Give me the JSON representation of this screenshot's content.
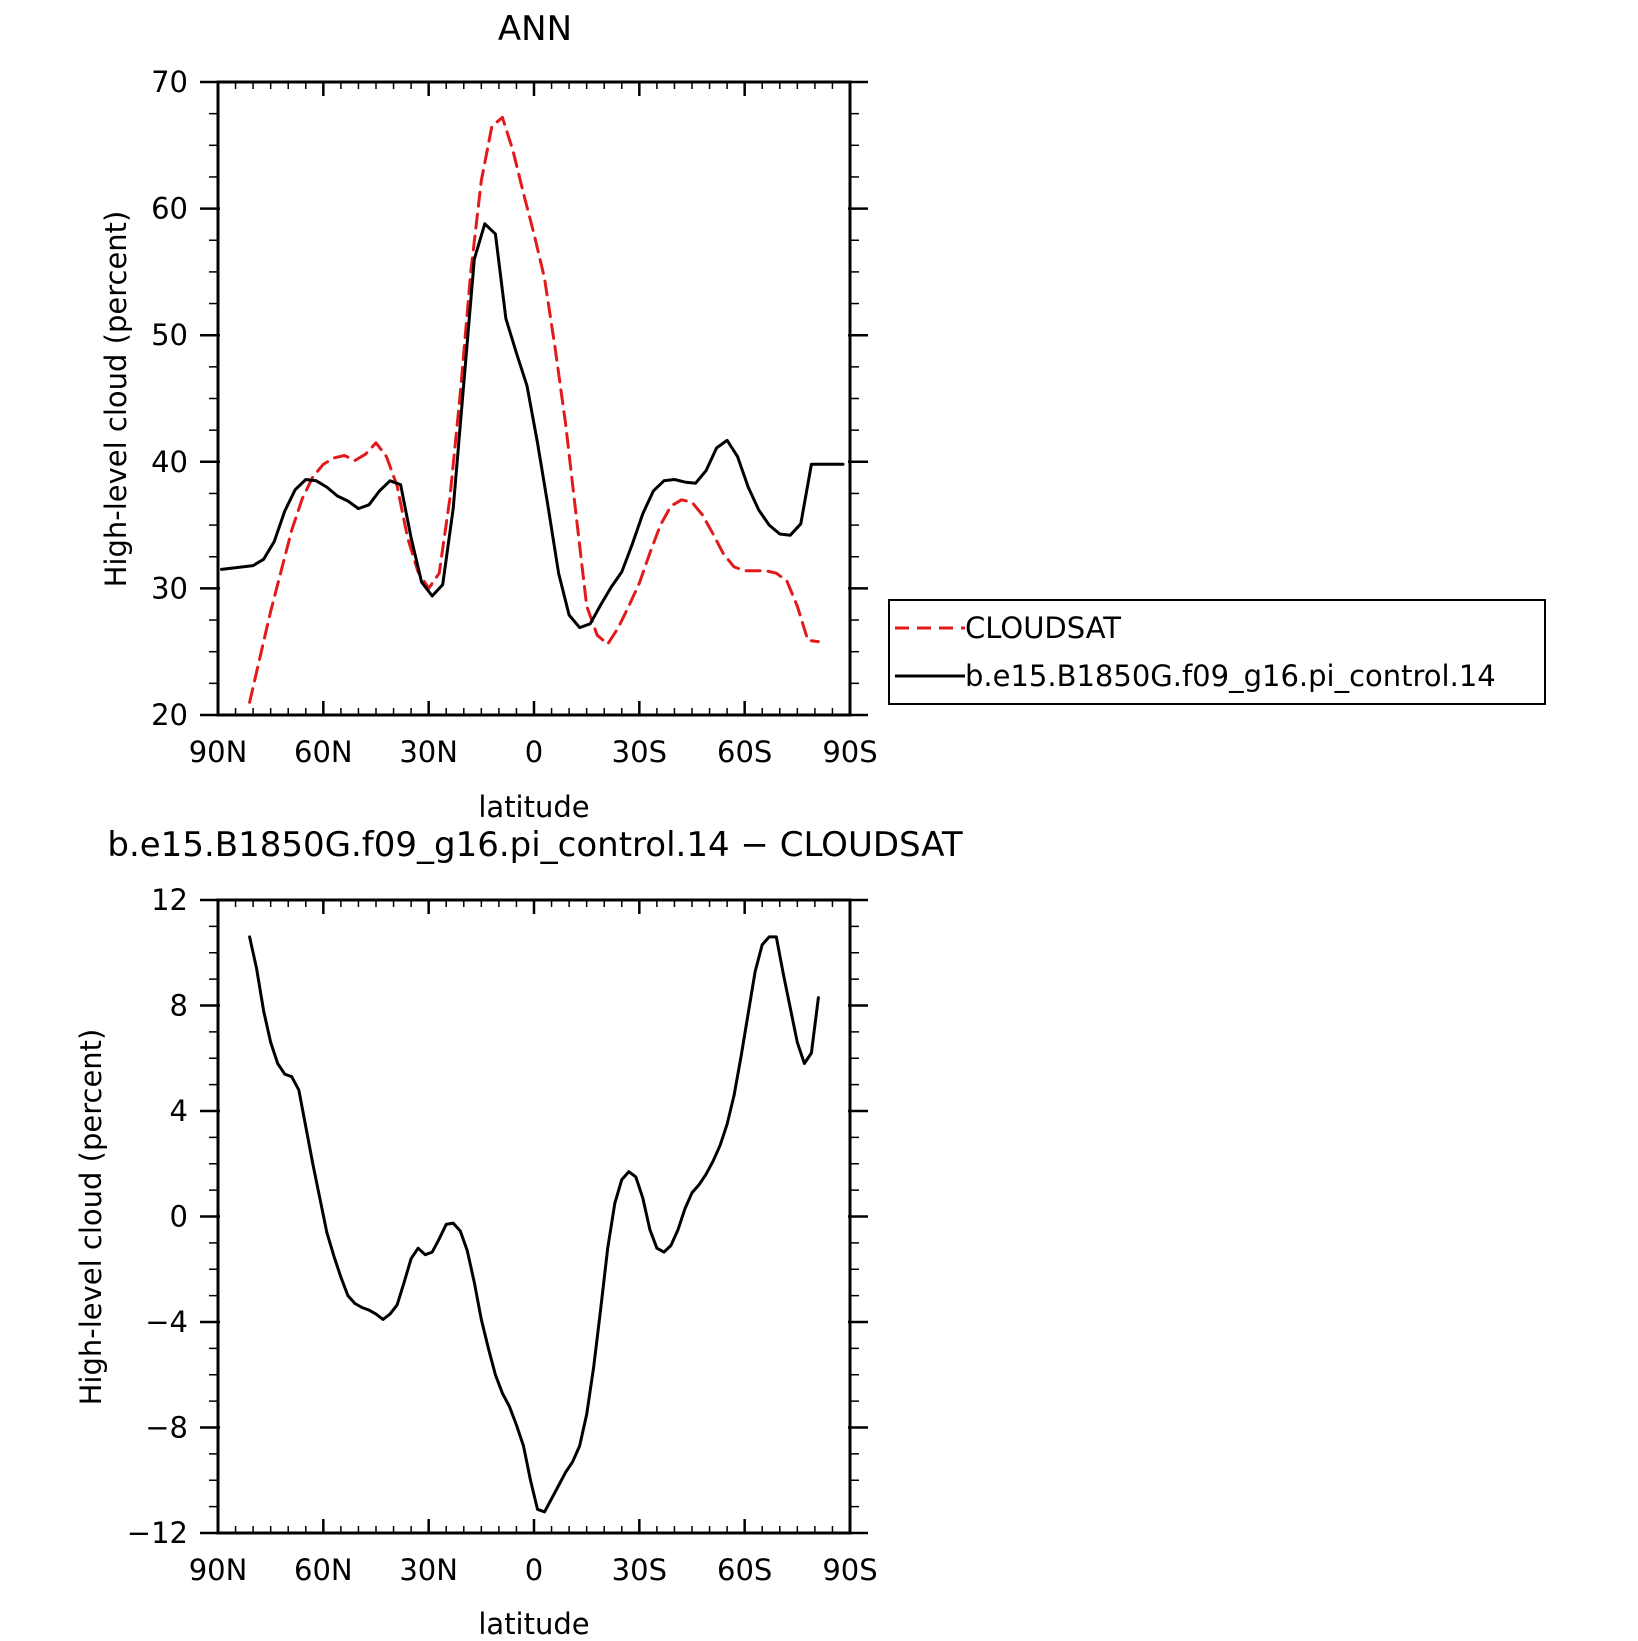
{
  "chart_data": [
    {
      "type": "line",
      "title": "ANN",
      "xlabel": "latitude",
      "ylabel": "High-level cloud (percent)",
      "xlim": [
        90,
        -90
      ],
      "ylim": [
        20,
        70
      ],
      "xticks": [
        {
          "value": 90,
          "label": "90N"
        },
        {
          "value": 60,
          "label": "60N"
        },
        {
          "value": 30,
          "label": "30N"
        },
        {
          "value": 0,
          "label": "0"
        },
        {
          "value": -30,
          "label": "30S"
        },
        {
          "value": -60,
          "label": "60S"
        },
        {
          "value": -90,
          "label": "90S"
        }
      ],
      "yticks": [
        {
          "value": 20,
          "label": "20"
        },
        {
          "value": 30,
          "label": "30"
        },
        {
          "value": 40,
          "label": "40"
        },
        {
          "value": 50,
          "label": "50"
        },
        {
          "value": 60,
          "label": "60"
        },
        {
          "value": 70,
          "label": "70"
        }
      ],
      "legend_position": "right",
      "series": [
        {
          "name": "CLOUDSAT",
          "color": "#e31a1c",
          "dash": "dashed",
          "x": [
            81,
            78,
            75,
            72,
            69,
            66,
            63,
            60,
            57,
            54,
            51,
            48,
            45,
            42,
            39,
            36,
            33,
            30,
            27,
            24,
            21,
            18,
            15,
            12,
            9,
            6,
            3,
            0,
            -3,
            -6,
            -9,
            -12,
            -15,
            -18,
            -21,
            -24,
            -27,
            -30,
            -33,
            -36,
            -39,
            -42,
            -45,
            -48,
            -51,
            -54,
            -57,
            -60,
            -63,
            -66,
            -69,
            -72,
            -75,
            -78,
            -81
          ],
          "y": [
            21.0,
            24.6,
            28.2,
            31.4,
            34.6,
            37.1,
            38.8,
            39.8,
            40.3,
            40.5,
            40.1,
            40.6,
            41.5,
            40.4,
            38.1,
            34.0,
            31.3,
            30.0,
            31.2,
            37.0,
            45.4,
            55.0,
            62.2,
            66.5,
            67.2,
            64.6,
            61.2,
            58.0,
            54.5,
            49.0,
            43.0,
            35.8,
            28.6,
            26.3,
            25.6,
            26.9,
            28.6,
            30.4,
            32.8,
            35.0,
            36.5,
            37.0,
            36.8,
            35.8,
            34.3,
            32.7,
            31.7,
            31.4,
            31.4,
            31.4,
            31.2,
            30.6,
            28.6,
            25.9,
            25.8
          ]
        },
        {
          "name": "b.e15.B1850G.f09_g16.pi_control.14",
          "color": "#000000",
          "dash": "solid",
          "x": [
            89,
            86,
            83,
            80,
            77,
            74,
            71,
            68,
            65,
            62,
            59,
            56,
            53,
            50,
            47,
            44,
            41,
            38,
            35,
            32,
            29,
            26,
            23,
            20,
            17,
            14,
            11,
            8,
            5,
            2,
            -1,
            -4,
            -7,
            -10,
            -13,
            -16,
            -19,
            -22,
            -25,
            -28,
            -31,
            -34,
            -37,
            -40,
            -43,
            -46,
            -49,
            -52,
            -55,
            -58,
            -61,
            -64,
            -67,
            -70,
            -73,
            -76,
            -79,
            -82,
            -85,
            -88
          ],
          "y": [
            31.5,
            31.6,
            31.7,
            31.8,
            32.3,
            33.7,
            36.1,
            37.8,
            38.6,
            38.5,
            38.0,
            37.3,
            36.9,
            36.3,
            36.6,
            37.7,
            38.5,
            38.2,
            34.0,
            30.5,
            29.4,
            30.3,
            36.3,
            46.2,
            56.0,
            58.8,
            58.0,
            51.3,
            48.6,
            46.0,
            41.5,
            36.5,
            31.2,
            27.9,
            26.9,
            27.2,
            28.7,
            30.1,
            31.3,
            33.5,
            35.9,
            37.7,
            38.5,
            38.6,
            38.4,
            38.3,
            39.3,
            41.1,
            41.7,
            40.4,
            38.0,
            36.2,
            35.0,
            34.3,
            34.2,
            35.1,
            39.8,
            39.8,
            39.8,
            39.8
          ]
        }
      ]
    },
    {
      "type": "line",
      "title": "b.e15.B1850G.f09_g16.pi_control.14 − CLOUDSAT",
      "xlabel": "latitude",
      "ylabel": "High-level cloud (percent)",
      "xlim": [
        90,
        -90
      ],
      "ylim": [
        -12,
        12
      ],
      "xticks": [
        {
          "value": 90,
          "label": "90N"
        },
        {
          "value": 60,
          "label": "60N"
        },
        {
          "value": 30,
          "label": "30N"
        },
        {
          "value": 0,
          "label": "0"
        },
        {
          "value": -30,
          "label": "30S"
        },
        {
          "value": -60,
          "label": "60S"
        },
        {
          "value": -90,
          "label": "90S"
        }
      ],
      "yticks": [
        {
          "value": -12,
          "label": "−12"
        },
        {
          "value": -8,
          "label": "−8"
        },
        {
          "value": -4,
          "label": "−4"
        },
        {
          "value": 0,
          "label": "0"
        },
        {
          "value": 4,
          "label": "4"
        },
        {
          "value": 8,
          "label": "8"
        },
        {
          "value": 12,
          "label": "12"
        }
      ],
      "series": [
        {
          "color": "#000000",
          "dash": "solid",
          "x": [
            81,
            79,
            77,
            75,
            73,
            71,
            69,
            67,
            65,
            63,
            61,
            59,
            57,
            55,
            53,
            51,
            49,
            47,
            45,
            43,
            41,
            39,
            37,
            35,
            33,
            31,
            29,
            27,
            25,
            23,
            21,
            19,
            17,
            15,
            13,
            11,
            9,
            7,
            5,
            3,
            1,
            -1,
            -3,
            -5,
            -7,
            -9,
            -11,
            -13,
            -15,
            -17,
            -19,
            -21,
            -23,
            -25,
            -27,
            -29,
            -31,
            -33,
            -35,
            -37,
            -39,
            -41,
            -43,
            -45,
            -47,
            -49,
            -51,
            -53,
            -55,
            -57,
            -59,
            -61,
            -63,
            -65,
            -67,
            -69,
            -71,
            -73,
            -75,
            -77,
            -79,
            -81
          ],
          "y": [
            10.6,
            9.4,
            7.8,
            6.6,
            5.8,
            5.4,
            5.3,
            4.8,
            3.4,
            2.0,
            0.7,
            -0.6,
            -1.5,
            -2.3,
            -3.0,
            -3.3,
            -3.45,
            -3.55,
            -3.7,
            -3.9,
            -3.7,
            -3.35,
            -2.5,
            -1.6,
            -1.2,
            -1.45,
            -1.35,
            -0.85,
            -0.3,
            -0.25,
            -0.55,
            -1.3,
            -2.5,
            -3.9,
            -5.0,
            -6.0,
            -6.7,
            -7.2,
            -7.9,
            -8.7,
            -10.0,
            -11.1,
            -11.2,
            -10.7,
            -10.2,
            -9.7,
            -9.3,
            -8.7,
            -7.5,
            -5.7,
            -3.5,
            -1.2,
            0.5,
            1.4,
            1.7,
            1.5,
            0.7,
            -0.5,
            -1.2,
            -1.35,
            -1.1,
            -0.5,
            0.3,
            0.9,
            1.2,
            1.6,
            2.1,
            2.7,
            3.5,
            4.6,
            6.1,
            7.7,
            9.3,
            10.3,
            10.6,
            10.6,
            9.2,
            7.9,
            6.6,
            5.8,
            6.2,
            8.3
          ]
        }
      ]
    }
  ]
}
